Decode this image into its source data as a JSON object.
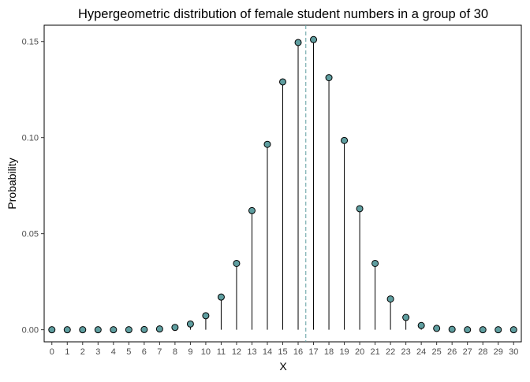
{
  "chart_data": {
    "type": "lollipop",
    "title": "Hypergeometric distribution of female student numbers in a group of 30",
    "xlabel": "X",
    "ylabel": "Probability",
    "x": [
      0,
      1,
      2,
      3,
      4,
      5,
      6,
      7,
      8,
      9,
      10,
      11,
      12,
      13,
      14,
      15,
      16,
      17,
      18,
      19,
      20,
      21,
      22,
      23,
      24,
      25,
      26,
      27,
      28,
      29,
      30
    ],
    "values": [
      0.0,
      0.0,
      0.0,
      0.0,
      0.0,
      0.0,
      0.0001,
      0.0004,
      0.0012,
      0.003,
      0.0073,
      0.017,
      0.0345,
      0.062,
      0.0965,
      0.129,
      0.1495,
      0.151,
      0.1312,
      0.0985,
      0.063,
      0.0345,
      0.016,
      0.0064,
      0.0022,
      0.0007,
      0.0002,
      0.0,
      0.0,
      0.0,
      0.0
    ],
    "x_ticks": [
      "0",
      "1",
      "2",
      "3",
      "4",
      "5",
      "6",
      "7",
      "8",
      "9",
      "10",
      "11",
      "12",
      "13",
      "14",
      "15",
      "16",
      "17",
      "18",
      "19",
      "20",
      "21",
      "22",
      "23",
      "24",
      "25",
      "26",
      "27",
      "28",
      "29",
      "30"
    ],
    "y_ticks": [
      "0.00",
      "0.05",
      "0.10",
      "0.15"
    ],
    "y_tick_values": [
      0.0,
      0.05,
      0.1,
      0.15
    ],
    "xlim": [
      -0.5,
      30.5
    ],
    "ylim": [
      -0.0063,
      0.1585
    ],
    "mean_line": 16.5,
    "grid": false,
    "legend": "none",
    "colors": {
      "point_fill": "#5f9ea0",
      "point_stroke": "#000000",
      "stem": "#000000",
      "mean_line": "#5f9ea0",
      "panel_border": "#000000"
    }
  }
}
